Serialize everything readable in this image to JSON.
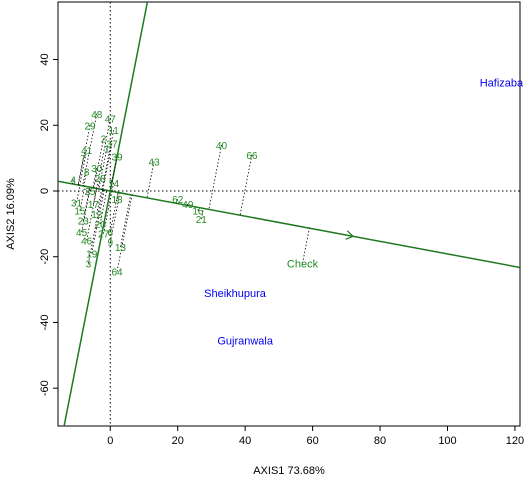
{
  "chart_data": {
    "type": "scatter",
    "title": "",
    "xlabel": "AXIS1 73.68%",
    "ylabel": "AXIS2 16.09%",
    "xlim": [
      -15.5,
      121.5
    ],
    "ylim": [
      -71.5,
      57.5
    ],
    "xticks": [
      0,
      20,
      40,
      60,
      80,
      100,
      120
    ],
    "yticks": [
      -60,
      -40,
      -20,
      0,
      20,
      40
    ],
    "colors": {
      "genotype": "#228B22",
      "environment": "#0000EE",
      "reference_line": "#1F7A1F",
      "axes_line": "#000000"
    },
    "reference_lines": {
      "ate_slope": -0.1915,
      "perpendicular_slope": 5.222,
      "arrow_at_x": 72
    },
    "environments": [
      {
        "name": "Hafizaba",
        "x": 116,
        "y": 33
      },
      {
        "name": "Sheikhupura",
        "x": 37,
        "y": -31
      },
      {
        "name": "Gujranwala",
        "x": 40,
        "y": -45.5
      }
    ],
    "check": {
      "name": "Check",
      "x": 57,
      "y": -22
    },
    "genotypes": [
      {
        "name": "40",
        "x": 33,
        "y": 14
      },
      {
        "name": "66",
        "x": 42,
        "y": 11
      },
      {
        "name": "43",
        "x": 13,
        "y": 9
      },
      {
        "name": "62",
        "x": 20,
        "y": -2.5
      },
      {
        "name": "49",
        "x": 23,
        "y": -4
      },
      {
        "name": "16",
        "x": 26,
        "y": -6
      },
      {
        "name": "21",
        "x": 27,
        "y": -8.5
      },
      {
        "name": "13",
        "x": 3,
        "y": -17
      },
      {
        "name": "64",
        "x": 2,
        "y": -24.5
      },
      {
        "name": "48",
        "x": -4,
        "y": 23.5
      },
      {
        "name": "29",
        "x": -6,
        "y": 20
      },
      {
        "name": "47",
        "x": 0,
        "y": 22
      },
      {
        "name": "11",
        "x": 1,
        "y": 18.5
      },
      {
        "name": "37",
        "x": 0.5,
        "y": 14.5
      },
      {
        "name": "41",
        "x": -7,
        "y": 12.5
      },
      {
        "name": "39",
        "x": 2,
        "y": 10.5
      },
      {
        "name": "7",
        "x": -8,
        "y": 10
      },
      {
        "name": "4",
        "x": -11,
        "y": 3.5
      },
      {
        "name": "14",
        "x": 1,
        "y": 2.5
      },
      {
        "name": "18",
        "x": 2,
        "y": -2.5
      },
      {
        "name": "31",
        "x": -10,
        "y": -3.5
      },
      {
        "name": "15",
        "x": -9,
        "y": -6
      },
      {
        "name": "23",
        "x": -8,
        "y": -9
      },
      {
        "name": "45",
        "x": -8.5,
        "y": -12.5
      },
      {
        "name": "46",
        "x": -7,
        "y": -15
      },
      {
        "name": "19",
        "x": -5.5,
        "y": -19
      },
      {
        "name": "3",
        "x": -6.5,
        "y": -22
      },
      {
        "name": "9",
        "x": 0,
        "y": -15.5
      },
      {
        "name": "6",
        "x": 0,
        "y": -12.5
      },
      {
        "name": "20",
        "x": -3,
        "y": -10
      },
      {
        "name": "12",
        "x": -4,
        "y": -7
      },
      {
        "name": "17",
        "x": -5,
        "y": -4
      },
      {
        "name": "25",
        "x": -6,
        "y": 0
      },
      {
        "name": "28",
        "x": -3,
        "y": 4
      },
      {
        "name": "30",
        "x": -4,
        "y": 7
      },
      {
        "name": "2",
        "x": -2,
        "y": 16
      },
      {
        "name": "1",
        "x": -1,
        "y": 13
      },
      {
        "name": "8",
        "x": -7,
        "y": 6
      },
      {
        "name": "27",
        "x": -2,
        "y": -13
      }
    ]
  }
}
